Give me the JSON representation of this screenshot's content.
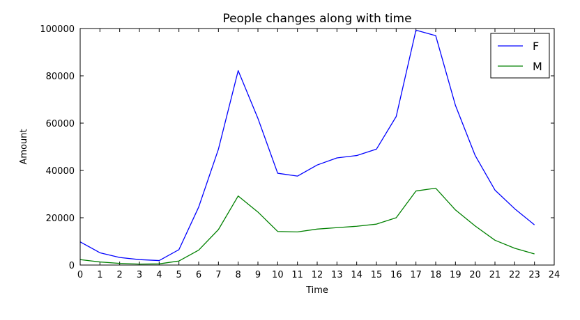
{
  "chart_data": {
    "type": "line",
    "title": "People changes along with time",
    "xlabel": "Time",
    "ylabel": "Amount",
    "xlim": [
      0,
      24
    ],
    "ylim": [
      0,
      100000
    ],
    "xticks": [
      0,
      1,
      2,
      3,
      4,
      5,
      6,
      7,
      8,
      9,
      10,
      11,
      12,
      13,
      14,
      15,
      16,
      17,
      18,
      19,
      20,
      21,
      22,
      23,
      24
    ],
    "yticks": [
      0,
      20000,
      40000,
      60000,
      80000,
      100000
    ],
    "grid": false,
    "legend_position": "top-right",
    "x": [
      0,
      1,
      2,
      3,
      4,
      5,
      6,
      7,
      8,
      9,
      10,
      11,
      12,
      13,
      14,
      15,
      16,
      17,
      18,
      19,
      20,
      21,
      22,
      23
    ],
    "series": [
      {
        "name": "F",
        "color": "#0000ff",
        "values": [
          9800,
          5200,
          3200,
          2300,
          1900,
          6500,
          24500,
          49000,
          82200,
          62000,
          38800,
          37600,
          42300,
          45300,
          46300,
          49000,
          62800,
          99300,
          97000,
          67500,
          46300,
          31700,
          23800,
          17000
        ]
      },
      {
        "name": "M",
        "color": "#008000",
        "values": [
          2300,
          1300,
          700,
          400,
          500,
          1700,
          6300,
          15000,
          29200,
          22400,
          14200,
          14000,
          15200,
          15800,
          16400,
          17300,
          20000,
          31300,
          32500,
          23300,
          16500,
          10500,
          7100,
          4700
        ]
      }
    ]
  }
}
